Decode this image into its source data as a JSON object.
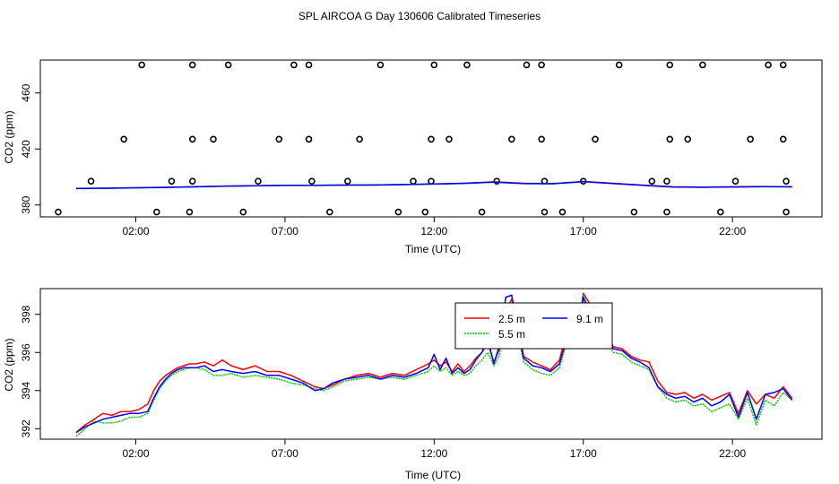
{
  "title": "SPL AIRCOA G  Day 130606  Calibrated Timeseries",
  "chart_data": [
    {
      "type": "line",
      "xlabel": "Time (UTC)",
      "ylabel": "CO2 (ppm)",
      "xlim": [
        -1.2,
        25.0
      ],
      "ylim": [
        371.5,
        483.5
      ],
      "xticks": [
        2,
        7,
        12,
        17,
        22
      ],
      "xtick_labels": [
        "02:00",
        "07:00",
        "12:00",
        "17:00",
        "22:00"
      ],
      "yticks": [
        380,
        420,
        460
      ],
      "ytick_labels": [
        "380",
        "420",
        "460"
      ],
      "series": [
        {
          "name": "2.5 m",
          "color": "#ff0000",
          "x": [
            0,
            1,
            2,
            3,
            4,
            5,
            6,
            7,
            8,
            9,
            10,
            11,
            12,
            13,
            14,
            15,
            16,
            17,
            18,
            19,
            20,
            21,
            22,
            23,
            24
          ],
          "values": [
            391.8,
            392.0,
            392.3,
            392.6,
            393.0,
            393.5,
            393.8,
            394.0,
            394.0,
            394.2,
            394.3,
            394.6,
            395.0,
            395.5,
            396.5,
            395.5,
            395.3,
            396.8,
            395.5,
            394.2,
            393.0,
            392.8,
            393.0,
            393.2,
            393.0
          ]
        },
        {
          "name": "5.5 m",
          "color": "#00cc00",
          "x": [
            0,
            1,
            2,
            3,
            4,
            5,
            6,
            7,
            8,
            9,
            10,
            11,
            12,
            13,
            14,
            15,
            16,
            17,
            18,
            19,
            20,
            21,
            22,
            23,
            24
          ],
          "values": [
            391.6,
            391.9,
            392.2,
            392.5,
            392.9,
            393.4,
            393.7,
            393.9,
            393.9,
            394.1,
            394.2,
            394.5,
            394.9,
            395.3,
            396.2,
            395.2,
            395.1,
            396.5,
            395.3,
            394.0,
            392.8,
            392.6,
            392.8,
            393.0,
            392.9
          ]
        },
        {
          "name": "9.1 m",
          "color": "#0000ff",
          "x": [
            0,
            1,
            2,
            3,
            4,
            5,
            6,
            7,
            8,
            9,
            10,
            11,
            12,
            13,
            14,
            15,
            16,
            17,
            18,
            19,
            20,
            21,
            22,
            23,
            24
          ],
          "values": [
            391.8,
            392.0,
            392.3,
            392.6,
            393.0,
            393.5,
            393.8,
            394.0,
            394.0,
            394.2,
            394.3,
            394.6,
            395.0,
            395.5,
            396.4,
            395.4,
            395.2,
            396.7,
            395.4,
            394.1,
            392.9,
            392.7,
            392.9,
            393.1,
            393.0
          ]
        }
      ],
      "markers": {
        "style": "open-circle",
        "x": [
          -0.6,
          0.5,
          1.6,
          2.2,
          2.7,
          3.2,
          3.8,
          3.9,
          3.9,
          3.9,
          4.6,
          5.1,
          5.6,
          6.1,
          6.8,
          7.3,
          7.8,
          7.8,
          7.9,
          8.5,
          9.1,
          9.5,
          10.2,
          10.8,
          11.3,
          11.7,
          11.9,
          11.9,
          12.0,
          12.5,
          13.1,
          13.6,
          14.1,
          14.6,
          15.1,
          15.6,
          15.6,
          15.7,
          15.7,
          16.3,
          17.0,
          17.4,
          18.2,
          18.7,
          19.3,
          19.8,
          19.8,
          19.9,
          19.9,
          20.5,
          21.0,
          21.6,
          22.1,
          22.6,
          23.2,
          23.7,
          23.7,
          23.8,
          23.8
        ],
        "values": [
          375,
          397,
          427,
          480,
          375,
          397,
          375,
          397,
          427,
          480,
          427,
          480,
          375,
          397,
          427,
          480,
          480,
          427,
          397,
          375,
          397,
          427,
          480,
          375,
          397,
          375,
          397,
          427,
          480,
          427,
          480,
          375,
          397,
          427,
          480,
          480,
          427,
          397,
          375,
          375,
          397,
          427,
          480,
          375,
          397,
          375,
          397,
          427,
          480,
          427,
          480,
          375,
          397,
          427,
          480,
          480,
          427,
          397,
          375
        ]
      }
    },
    {
      "type": "line",
      "xlabel": "Time (UTC)",
      "ylabel": "CO2 (ppm)",
      "xlim": [
        -1.2,
        25.0
      ],
      "ylim": [
        391.45,
        399.35
      ],
      "xticks": [
        2,
        7,
        12,
        17,
        22
      ],
      "xtick_labels": [
        "02:00",
        "07:00",
        "12:00",
        "17:00",
        "22:00"
      ],
      "yticks": [
        392,
        394,
        396,
        398
      ],
      "ytick_labels": [
        "392",
        "394",
        "396",
        "398"
      ],
      "legend": {
        "position": "top-right-center",
        "ncol": 2
      },
      "series": [
        {
          "name": "2.5 m",
          "color": "#ff0000",
          "x": [
            0,
            0.3,
            0.6,
            0.9,
            1.2,
            1.5,
            1.8,
            2.1,
            2.4,
            2.6,
            2.8,
            3.0,
            3.2,
            3.4,
            3.6,
            3.8,
            4.0,
            4.3,
            4.6,
            4.9,
            5.2,
            5.6,
            6.0,
            6.4,
            6.8,
            7.2,
            7.6,
            8.0,
            8.3,
            8.6,
            9.0,
            9.4,
            9.8,
            10.2,
            10.6,
            11.0,
            11.4,
            11.8,
            12.0,
            12.2,
            12.4,
            12.6,
            12.8,
            13.0,
            13.2,
            13.4,
            13.6,
            13.8,
            14.0,
            14.2,
            14.4,
            14.6,
            14.8,
            15.0,
            15.3,
            15.6,
            15.9,
            16.2,
            16.4,
            16.6,
            16.8,
            17.0,
            17.2,
            17.4,
            17.6,
            17.8,
            18.0,
            18.3,
            18.6,
            18.9,
            19.2,
            19.5,
            19.8,
            20.1,
            20.4,
            20.7,
            21.0,
            21.3,
            21.6,
            21.9,
            22.2,
            22.5,
            22.8,
            23.1,
            23.4,
            23.7,
            24.0
          ],
          "values": [
            391.8,
            392.2,
            392.5,
            392.8,
            392.7,
            392.9,
            392.9,
            393.0,
            393.3,
            394.0,
            394.5,
            394.8,
            395.0,
            395.2,
            395.3,
            395.4,
            395.4,
            395.5,
            395.3,
            395.6,
            395.3,
            395.1,
            395.3,
            395.0,
            395.0,
            394.8,
            394.5,
            394.2,
            394.1,
            394.3,
            394.6,
            394.8,
            394.9,
            394.7,
            394.9,
            394.8,
            395.1,
            395.4,
            395.6,
            395.3,
            395.5,
            395.0,
            395.4,
            395.0,
            395.3,
            395.7,
            396.0,
            396.5,
            395.5,
            396.2,
            398.2,
            398.8,
            397.5,
            395.8,
            395.5,
            395.3,
            395.1,
            395.6,
            396.8,
            397.8,
            396.8,
            399.1,
            398.6,
            396.9,
            396.6,
            397.0,
            396.3,
            396.2,
            395.8,
            395.6,
            395.5,
            394.5,
            393.9,
            393.8,
            393.9,
            393.6,
            393.8,
            393.5,
            393.7,
            393.9,
            392.8,
            394.0,
            393.3,
            393.8,
            393.6,
            394.2,
            393.6
          ]
        },
        {
          "name": "5.5 m",
          "color": "#00cc00",
          "x": [
            0,
            0.3,
            0.6,
            0.9,
            1.2,
            1.5,
            1.8,
            2.1,
            2.4,
            2.6,
            2.8,
            3.0,
            3.2,
            3.4,
            3.6,
            3.8,
            4.0,
            4.3,
            4.6,
            4.9,
            5.2,
            5.6,
            6.0,
            6.4,
            6.8,
            7.2,
            7.6,
            8.0,
            8.3,
            8.6,
            9.0,
            9.4,
            9.8,
            10.2,
            10.6,
            11.0,
            11.4,
            11.8,
            12.0,
            12.2,
            12.4,
            12.6,
            12.8,
            13.0,
            13.2,
            13.4,
            13.6,
            13.8,
            14.0,
            14.2,
            14.4,
            14.6,
            14.8,
            15.0,
            15.3,
            15.6,
            15.9,
            16.2,
            16.4,
            16.6,
            16.8,
            17.0,
            17.2,
            17.4,
            17.6,
            17.8,
            18.0,
            18.3,
            18.6,
            18.9,
            19.2,
            19.5,
            19.8,
            20.1,
            20.4,
            20.7,
            21.0,
            21.3,
            21.6,
            21.9,
            22.2,
            22.5,
            22.8,
            23.1,
            23.4,
            23.7,
            24.0
          ],
          "values": [
            391.6,
            392.0,
            392.4,
            392.3,
            392.3,
            392.4,
            392.6,
            392.6,
            392.8,
            393.5,
            394.1,
            394.5,
            394.8,
            395.0,
            395.1,
            395.2,
            395.2,
            395.1,
            394.8,
            394.8,
            394.9,
            394.7,
            394.8,
            394.7,
            394.6,
            394.4,
            394.3,
            394.1,
            394.0,
            394.2,
            394.5,
            394.6,
            394.7,
            394.6,
            394.7,
            394.6,
            394.8,
            395.0,
            395.3,
            395.0,
            395.2,
            394.8,
            395.0,
            394.8,
            394.9,
            395.3,
            395.6,
            396.0,
            395.3,
            395.9,
            398.0,
            398.6,
            397.0,
            395.5,
            395.1,
            394.9,
            394.8,
            395.2,
            396.3,
            397.4,
            396.4,
            399.0,
            398.3,
            396.6,
            396.3,
            396.6,
            396.0,
            395.9,
            395.5,
            395.3,
            395.1,
            394.2,
            393.6,
            393.4,
            393.5,
            393.2,
            393.3,
            392.9,
            393.1,
            393.3,
            392.5,
            393.6,
            392.2,
            393.5,
            393.2,
            393.9,
            393.5
          ]
        },
        {
          "name": "9.1 m",
          "color": "#0000ff",
          "x": [
            0,
            0.3,
            0.6,
            0.9,
            1.2,
            1.5,
            1.8,
            2.1,
            2.4,
            2.6,
            2.8,
            3.0,
            3.2,
            3.4,
            3.6,
            3.8,
            4.0,
            4.3,
            4.6,
            4.9,
            5.2,
            5.6,
            6.0,
            6.4,
            6.8,
            7.2,
            7.6,
            8.0,
            8.3,
            8.6,
            9.0,
            9.4,
            9.8,
            10.2,
            10.6,
            11.0,
            11.4,
            11.8,
            12.0,
            12.2,
            12.4,
            12.6,
            12.8,
            13.0,
            13.2,
            13.4,
            13.6,
            13.8,
            14.0,
            14.2,
            14.4,
            14.6,
            14.8,
            15.0,
            15.3,
            15.6,
            15.9,
            16.2,
            16.4,
            16.6,
            16.8,
            17.0,
            17.2,
            17.4,
            17.6,
            17.8,
            18.0,
            18.3,
            18.6,
            18.9,
            19.2,
            19.5,
            19.8,
            20.1,
            20.4,
            20.7,
            21.0,
            21.3,
            21.6,
            21.9,
            22.2,
            22.5,
            22.8,
            23.1,
            23.4,
            23.7,
            24.0
          ],
          "values": [
            391.8,
            392.1,
            392.3,
            392.5,
            392.6,
            392.7,
            392.8,
            392.8,
            392.9,
            393.6,
            394.2,
            394.6,
            394.9,
            395.1,
            395.2,
            395.2,
            395.2,
            395.3,
            395.0,
            395.1,
            395.0,
            394.9,
            395.0,
            394.8,
            394.8,
            394.6,
            394.4,
            394.0,
            394.1,
            394.4,
            394.6,
            394.7,
            394.8,
            394.6,
            394.8,
            394.7,
            394.9,
            395.2,
            395.9,
            395.1,
            395.7,
            394.9,
            395.2,
            394.9,
            395.1,
            395.6,
            396.0,
            396.7,
            395.4,
            396.4,
            398.9,
            399.0,
            397.2,
            395.7,
            395.3,
            395.2,
            395.0,
            395.4,
            396.5,
            397.7,
            396.4,
            398.9,
            398.1,
            396.5,
            396.9,
            397.2,
            396.2,
            396.1,
            395.7,
            395.5,
            395.2,
            394.2,
            393.8,
            393.6,
            393.7,
            393.4,
            393.6,
            393.2,
            393.4,
            393.8,
            392.6,
            393.9,
            392.5,
            393.8,
            393.9,
            394.1,
            393.5
          ]
        }
      ]
    }
  ]
}
